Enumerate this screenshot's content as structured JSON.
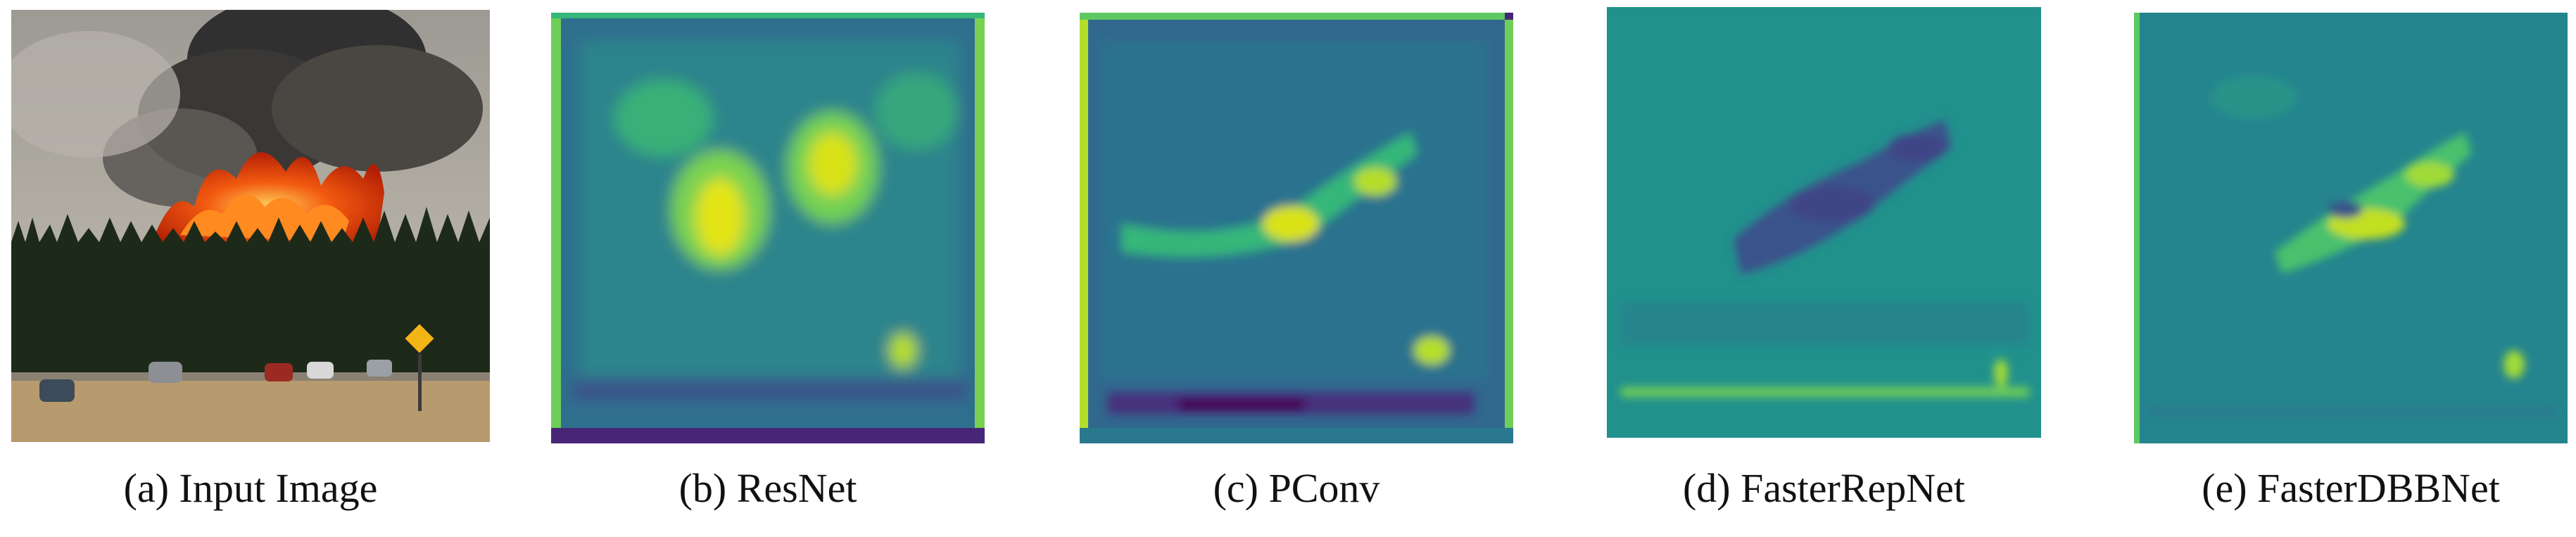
{
  "panels": [
    {
      "id": "input",
      "caption": "(a) Input Image",
      "kind": "photo",
      "content": "forest-fire-photo"
    },
    {
      "id": "resnet",
      "caption": "(b) ResNet",
      "kind": "heatmap",
      "colormap": "viridis"
    },
    {
      "id": "pconv",
      "caption": "(c) PConv",
      "kind": "heatmap",
      "colormap": "viridis"
    },
    {
      "id": "fasterrepnet",
      "caption": "(d) FasterRepNet",
      "kind": "heatmap",
      "colormap": "viridis"
    },
    {
      "id": "fasterdbbnet",
      "caption": "(e) FasterDBBNet",
      "kind": "heatmap",
      "colormap": "viridis"
    }
  ],
  "colors": {
    "viridis_dark": "#440154",
    "viridis_blue": "#31688e",
    "viridis_teal": "#21918c",
    "viridis_green": "#35b779",
    "viridis_yellow": "#fde725",
    "smoke": "#2a2a2a",
    "fire": "#f24a12",
    "forest": "#1d2a1a",
    "ground": "#b79a6e"
  }
}
